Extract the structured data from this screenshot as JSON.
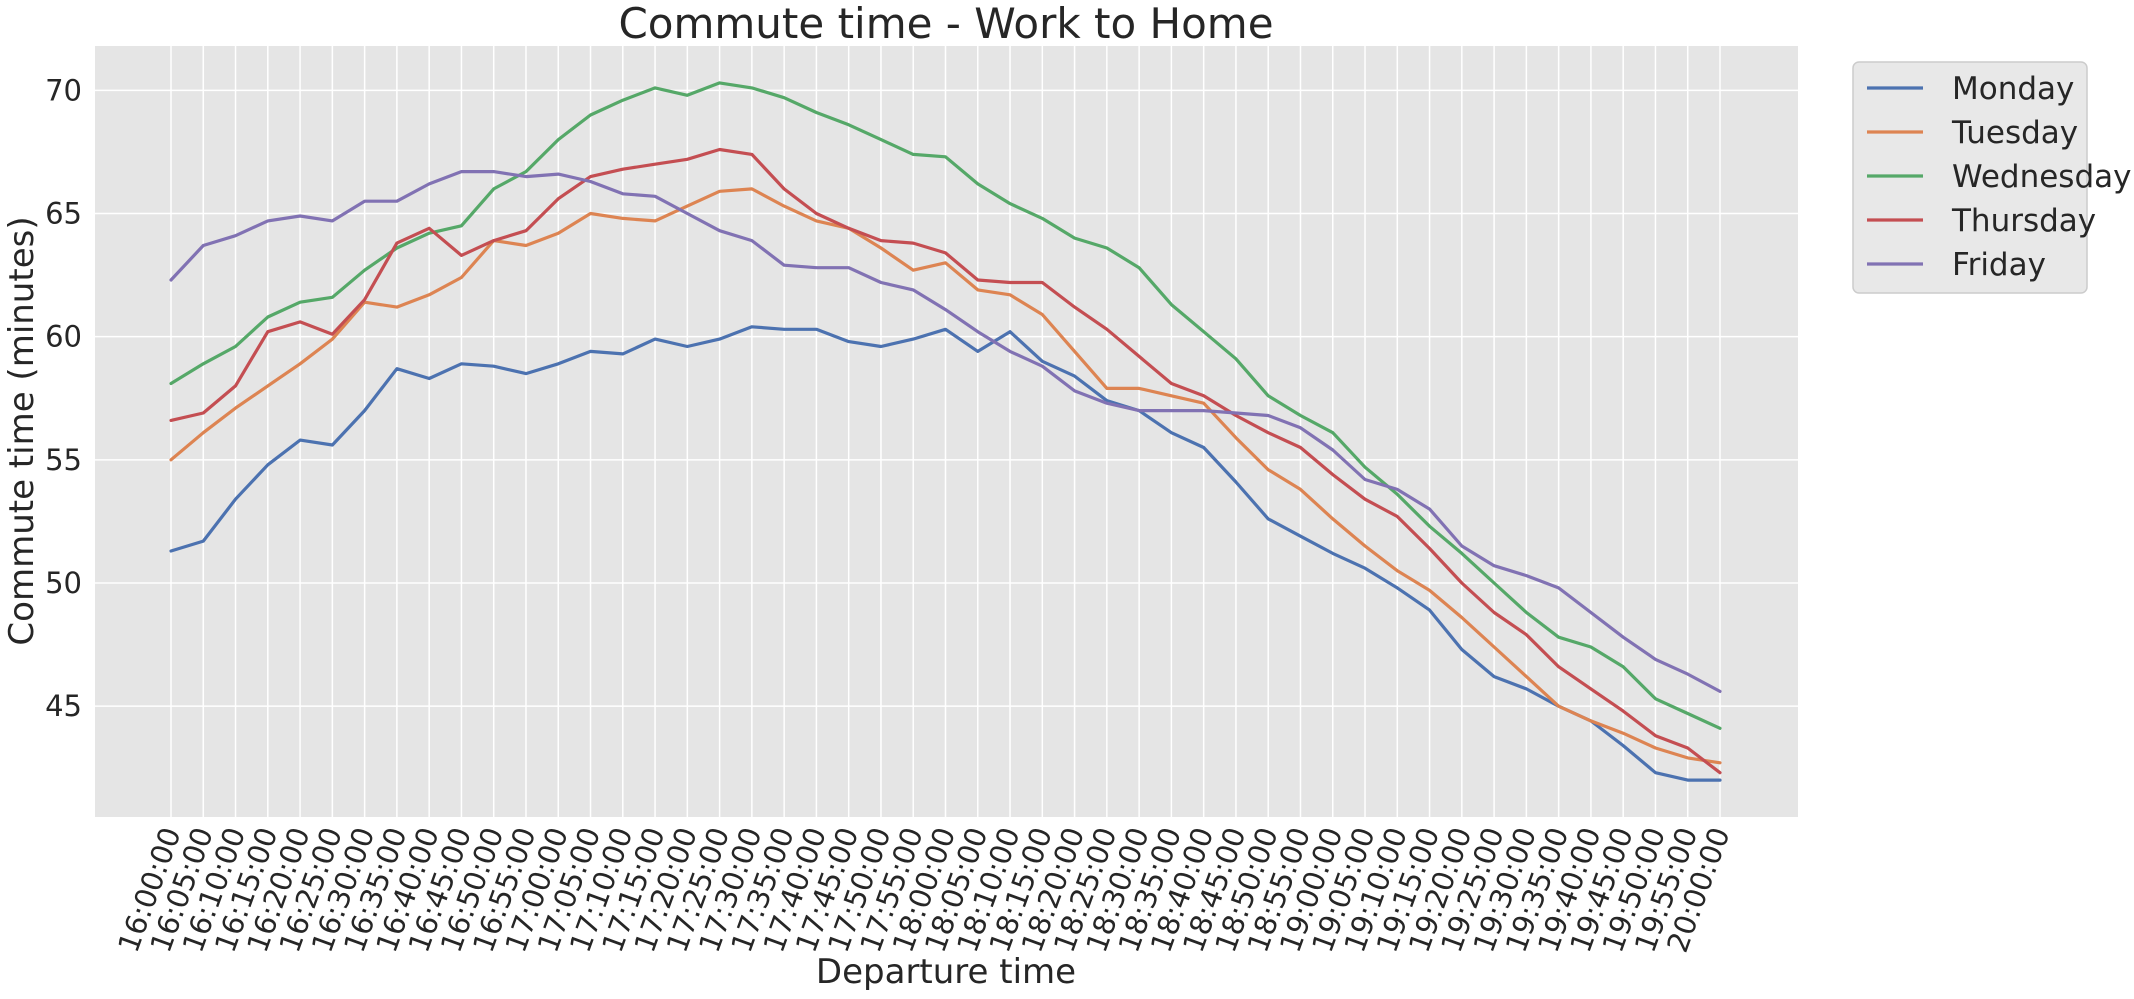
{
  "chart_data": {
    "type": "line",
    "title": "Commute time - Work to Home",
    "xlabel": "Departure time",
    "ylabel": "Commute time (minutes)",
    "ylim": [
      40.5,
      71.8
    ],
    "yticks": [
      45,
      50,
      55,
      60,
      65,
      70
    ],
    "grid": true,
    "legend_position": "outside-right-top",
    "x": [
      "16:00:00",
      "16:05:00",
      "16:10:00",
      "16:15:00",
      "16:20:00",
      "16:25:00",
      "16:30:00",
      "16:35:00",
      "16:40:00",
      "16:45:00",
      "16:50:00",
      "16:55:00",
      "17:00:00",
      "17:05:00",
      "17:10:00",
      "17:15:00",
      "17:20:00",
      "17:25:00",
      "17:30:00",
      "17:35:00",
      "17:40:00",
      "17:45:00",
      "17:50:00",
      "17:55:00",
      "18:00:00",
      "18:05:00",
      "18:10:00",
      "18:15:00",
      "18:20:00",
      "18:25:00",
      "18:30:00",
      "18:35:00",
      "18:40:00",
      "18:45:00",
      "18:50:00",
      "18:55:00",
      "19:00:00",
      "19:05:00",
      "19:10:00",
      "19:15:00",
      "19:20:00",
      "19:25:00",
      "19:30:00",
      "19:35:00",
      "19:40:00",
      "19:45:00",
      "19:50:00",
      "19:55:00",
      "20:00:00"
    ],
    "series": [
      {
        "name": "Monday",
        "color": "#4c72b0",
        "values": [
          51.3,
          51.7,
          53.4,
          54.8,
          55.8,
          55.6,
          57.0,
          58.7,
          58.3,
          58.9,
          58.8,
          58.5,
          58.9,
          59.4,
          59.3,
          59.9,
          59.6,
          59.9,
          60.4,
          60.3,
          60.3,
          59.8,
          59.6,
          59.9,
          60.3,
          59.4,
          60.2,
          59.0,
          58.4,
          57.4,
          57.0,
          56.1,
          55.5,
          54.1,
          52.6,
          51.9,
          51.2,
          50.6,
          49.8,
          48.9,
          47.3,
          46.2,
          45.7,
          45.0,
          44.4,
          43.4,
          42.3,
          42.0,
          42.0
        ]
      },
      {
        "name": "Tuesday",
        "color": "#dd8452",
        "values": [
          55.0,
          56.1,
          57.1,
          58.0,
          58.9,
          59.9,
          61.4,
          61.2,
          61.7,
          62.4,
          63.9,
          63.7,
          64.2,
          65.0,
          64.8,
          64.7,
          65.3,
          65.9,
          66.0,
          65.3,
          64.7,
          64.4,
          63.6,
          62.7,
          63.0,
          61.9,
          61.7,
          60.9,
          59.4,
          57.9,
          57.9,
          57.6,
          57.3,
          55.9,
          54.6,
          53.8,
          52.6,
          51.5,
          50.5,
          49.7,
          48.6,
          47.4,
          46.2,
          45.0,
          44.4,
          43.9,
          43.3,
          42.9,
          42.7
        ]
      },
      {
        "name": "Wednesday",
        "color": "#55a868",
        "values": [
          58.1,
          58.9,
          59.6,
          60.8,
          61.4,
          61.6,
          62.7,
          63.6,
          64.2,
          64.5,
          66.0,
          66.7,
          68.0,
          69.0,
          69.6,
          70.1,
          69.8,
          70.3,
          70.1,
          69.7,
          69.1,
          68.6,
          68.0,
          67.4,
          67.3,
          66.2,
          65.4,
          64.8,
          64.0,
          63.6,
          62.8,
          61.3,
          60.2,
          59.1,
          57.6,
          56.8,
          56.1,
          54.7,
          53.6,
          52.3,
          51.2,
          50.0,
          48.8,
          47.8,
          47.4,
          46.6,
          45.3,
          44.7,
          44.1
        ]
      },
      {
        "name": "Thursday",
        "color": "#c44e52",
        "values": [
          56.6,
          56.9,
          58.0,
          60.2,
          60.6,
          60.1,
          61.5,
          63.8,
          64.4,
          63.3,
          63.9,
          64.3,
          65.6,
          66.5,
          66.8,
          67.0,
          67.2,
          67.6,
          67.4,
          66.0,
          65.0,
          64.4,
          63.9,
          63.8,
          63.4,
          62.3,
          62.2,
          62.2,
          61.2,
          60.3,
          59.2,
          58.1,
          57.6,
          56.8,
          56.1,
          55.5,
          54.4,
          53.4,
          52.7,
          51.4,
          50.0,
          48.8,
          47.9,
          46.6,
          45.7,
          44.8,
          43.8,
          43.3,
          42.3
        ]
      },
      {
        "name": "Friday",
        "color": "#8172b3",
        "values": [
          62.3,
          63.7,
          64.1,
          64.7,
          64.9,
          64.7,
          65.5,
          65.5,
          66.2,
          66.7,
          66.7,
          66.5,
          66.6,
          66.3,
          65.8,
          65.7,
          65.0,
          64.3,
          63.9,
          62.9,
          62.8,
          62.8,
          62.2,
          61.9,
          61.1,
          60.2,
          59.4,
          58.8,
          57.8,
          57.3,
          57.0,
          57.0,
          57.0,
          56.9,
          56.8,
          56.3,
          55.4,
          54.2,
          53.8,
          53.0,
          51.5,
          50.7,
          50.3,
          49.8,
          48.8,
          47.8,
          46.9,
          46.3,
          45.6
        ]
      }
    ]
  }
}
